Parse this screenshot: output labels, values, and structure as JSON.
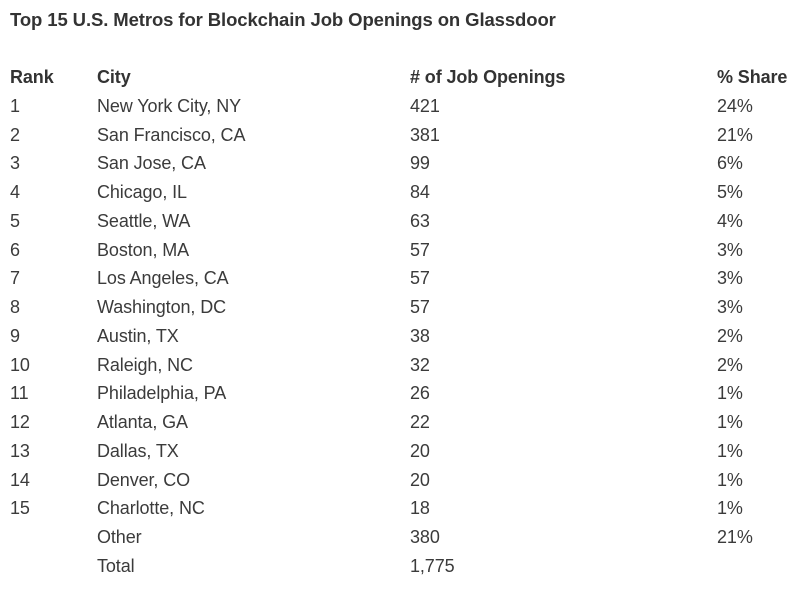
{
  "page": {
    "background_color": "#ffffff",
    "text_color": "#3b3b3b",
    "title_color": "#333333"
  },
  "chart_data": {
    "type": "table",
    "title": "Top 15 U.S. Metros for Blockchain Job Openings on Glassdoor",
    "columns": [
      "Rank",
      "City",
      "# of Job Openings",
      "% Share"
    ],
    "rows": [
      [
        "1",
        "New York City, NY",
        "421",
        "24%"
      ],
      [
        "2",
        "San Francisco, CA",
        "381",
        "21%"
      ],
      [
        "3",
        "San Jose, CA",
        "99",
        "6%"
      ],
      [
        "4",
        "Chicago, IL",
        "84",
        "5%"
      ],
      [
        "5",
        "Seattle, WA",
        "63",
        "4%"
      ],
      [
        "6",
        "Boston, MA",
        "57",
        "3%"
      ],
      [
        "7",
        "Los Angeles, CA",
        "57",
        "3%"
      ],
      [
        "8",
        "Washington, DC",
        "57",
        "3%"
      ],
      [
        "9",
        "Austin, TX",
        "38",
        "2%"
      ],
      [
        "10",
        "Raleigh, NC",
        "32",
        "2%"
      ],
      [
        "11",
        "Philadelphia, PA",
        "26",
        "1%"
      ],
      [
        "12",
        "Atlanta, GA",
        "22",
        "1%"
      ],
      [
        "13",
        "Dallas, TX",
        "20",
        "1%"
      ],
      [
        "14",
        "Denver, CO",
        "20",
        "1%"
      ],
      [
        "15",
        "Charlotte, NC",
        "18",
        "1%"
      ],
      [
        "",
        "Other",
        "380",
        "21%"
      ],
      [
        "",
        "Total",
        "1,775",
        ""
      ]
    ]
  }
}
